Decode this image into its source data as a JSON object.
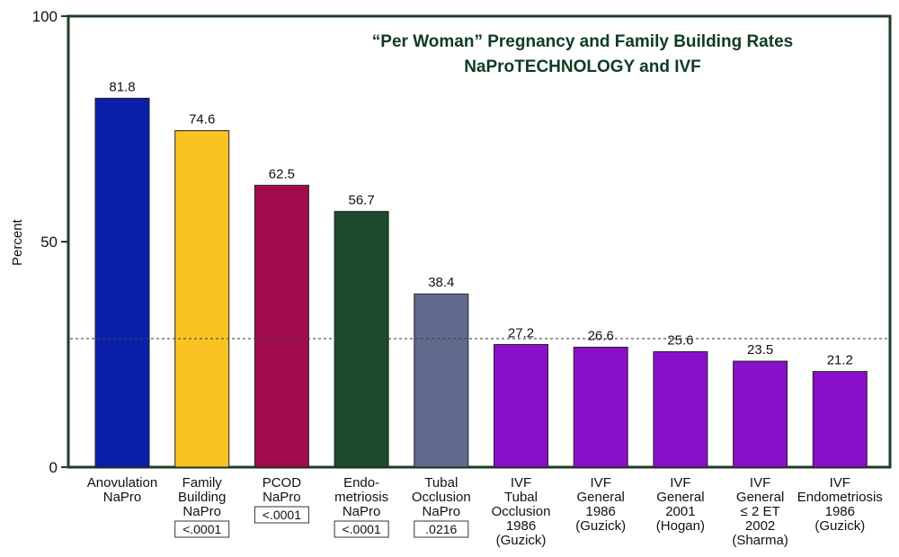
{
  "chart_data": {
    "type": "bar",
    "title": "“Per Woman” Pregnancy and Family Building Rates",
    "subtitle": "NaProTECHNOLOGY and IVF",
    "ylabel": "Percent",
    "xlabel": "",
    "ylim": [
      0,
      100
    ],
    "yticks": [
      "0",
      "50",
      "100"
    ],
    "grid": false,
    "reference_line": 28.5,
    "categories": [
      [
        "Anovulation",
        "NaPro"
      ],
      [
        "Family",
        "Building",
        "NaPro"
      ],
      [
        "PCOD",
        "NaPro"
      ],
      [
        "Endo-",
        "metriosis",
        "NaPro"
      ],
      [
        "Tubal",
        "Occlusion",
        "NaPro"
      ],
      [
        "IVF",
        "Tubal",
        "Occlusion",
        "1986",
        "(Guzick)"
      ],
      [
        "IVF",
        "General",
        "1986",
        "(Guzick)"
      ],
      [
        "IVF",
        "General",
        "2001",
        "(Hogan)"
      ],
      [
        "IVF",
        "General",
        "≤ 2 ET",
        "2002",
        "(Sharma)"
      ],
      [
        "IVF",
        "Endometriosis",
        "1986",
        "(Guzick)"
      ]
    ],
    "values": [
      81.8,
      74.6,
      62.5,
      56.7,
      38.4,
      27.2,
      26.6,
      25.6,
      23.5,
      21.2
    ],
    "value_labels": [
      "81.8",
      "74.6",
      "62.5",
      "56.7",
      "38.4",
      "27.2",
      "26.6",
      "25.6",
      "23.5",
      "21.2"
    ],
    "colors": [
      "#0a1fa8",
      "#fbc223",
      "#a10a4b",
      "#1b4a2c",
      "#5f6a8c",
      "#8a0fc8",
      "#8a0fc8",
      "#8a0fc8",
      "#8a0fc8",
      "#8a0fc8"
    ],
    "p_values": [
      "",
      "<.0001",
      "<.0001",
      "<.0001",
      ".0216",
      "",
      "",
      "",
      "",
      ""
    ]
  }
}
